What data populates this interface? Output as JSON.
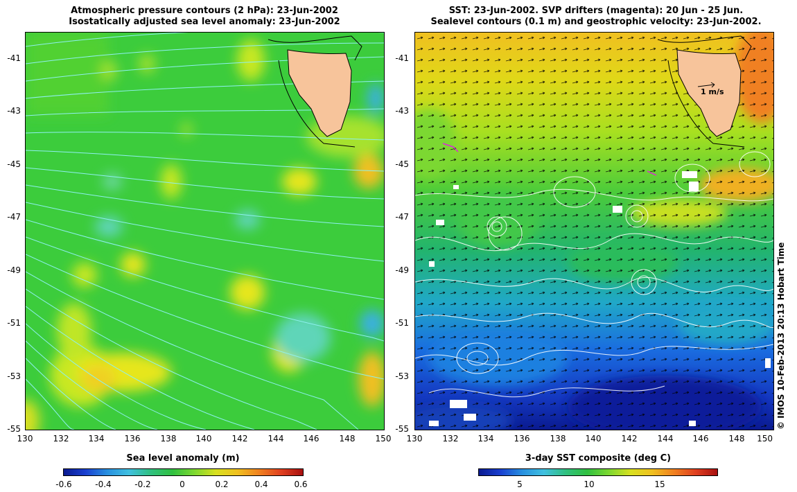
{
  "left_panel": {
    "title_line1": "Atmospheric pressure contours (2 hPa): 23-Jun-2002",
    "title_line2": "Isostatically adjusted sea level anomaly: 23-Jun-2002",
    "colorbar_label": "Sea level anomaly (m)",
    "colorbar_ticks": [
      "-0.6",
      "-0.4",
      "-0.2",
      "0",
      "0.2",
      "0.4",
      "0.6"
    ]
  },
  "right_panel": {
    "title_line1": "SST: 23-Jun-2002. SVP drifters (magenta): 20 Jun - 25 Jun.",
    "title_line2": "Sealevel contours (0.1 m) and geostrophic velocity: 23-Jun-2002.",
    "colorbar_label": "3-day SST composite (deg C)",
    "colorbar_ticks": [
      "5",
      "10",
      "15"
    ],
    "velocity_scale_label": "1 m/s"
  },
  "axes": {
    "y_ticks": [
      "-41",
      "-43",
      "-45",
      "-47",
      "-49",
      "-51",
      "-53",
      "-55"
    ],
    "x_ticks": [
      "130",
      "132",
      "134",
      "136",
      "138",
      "140",
      "142",
      "144",
      "146",
      "148",
      "150"
    ]
  },
  "credit": "© IMOS 10-Feb-2013 20:13 Hobart Time",
  "colors": {
    "land": "#f7c49b",
    "ocean_green": "#33cc33",
    "contour_cyan": "#66e0e0",
    "contour_white": "#ffffff"
  }
}
